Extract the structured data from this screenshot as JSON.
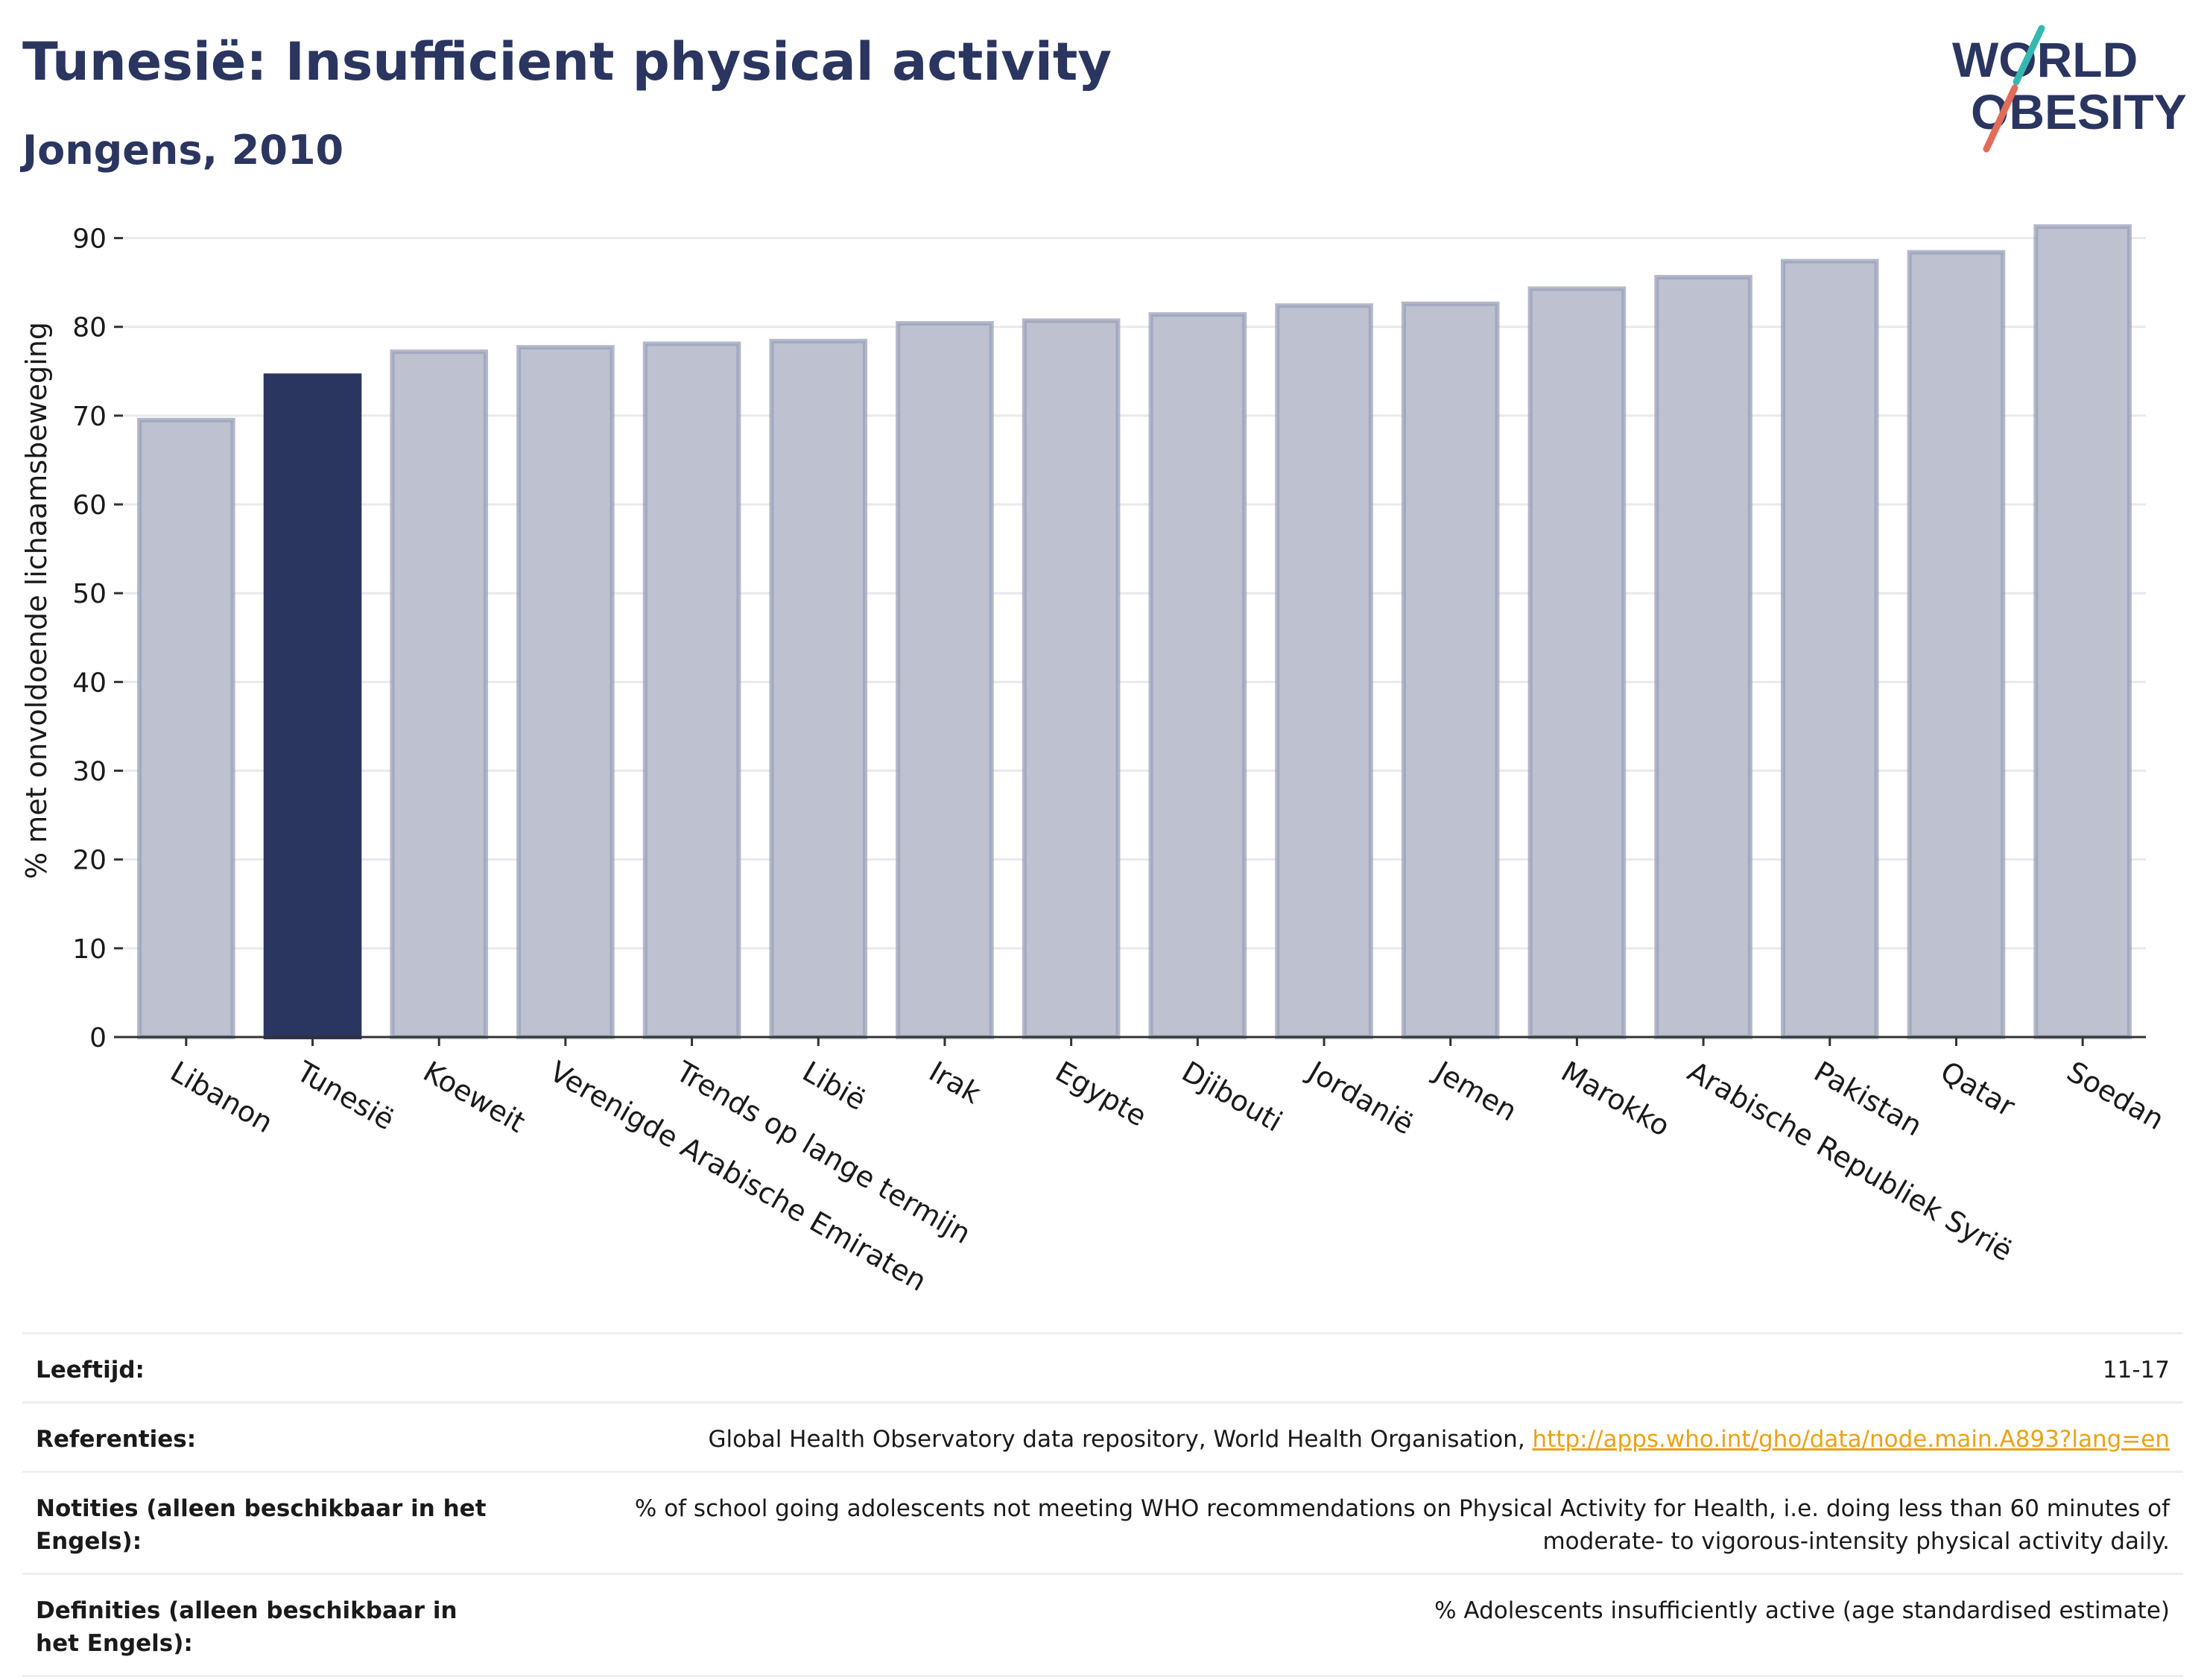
{
  "header": {
    "title": "Tunesië: Insufficient physical activity",
    "subtitle": "Jongens, 2010"
  },
  "logo": {
    "line1": "WORLD",
    "line2": "OBESITY"
  },
  "chart_data": {
    "type": "bar",
    "ylabel": "% met onvoldoende lichaamsbeweging",
    "ylim": [
      0,
      95
    ],
    "yticks": [
      0,
      10,
      20,
      30,
      40,
      50,
      60,
      70,
      80,
      90
    ],
    "grid": true,
    "categories": [
      "Libanon",
      "Tunesië",
      "Koeweit",
      "Verenigde Arabische Emiraten",
      "Trends op lange termijn",
      "Libië",
      "Irak",
      "Egypte",
      "Djibouti",
      "Jordanië",
      "Jemen",
      "Marokko",
      "Arabische Republiek Syrië",
      "Pakistan",
      "Qatar",
      "Soedan"
    ],
    "values": [
      69.5,
      74.5,
      77.2,
      77.7,
      78.1,
      78.4,
      80.4,
      80.7,
      81.4,
      82.4,
      82.6,
      84.3,
      85.6,
      87.4,
      88.4,
      91.3
    ],
    "highlight": "Tunesië",
    "colors": {
      "highlight": "#2a3560",
      "bar": "#bdc1d0",
      "bar_border": "#9aa0b8"
    }
  },
  "meta": [
    {
      "label": "Leeftijd:",
      "value": "11-17"
    },
    {
      "label": "Referenties:",
      "value": "Global Health Observatory data repository, World Health Organisation, ",
      "link": "http://apps.who.int/gho/data/node.main.A893?lang=en"
    },
    {
      "label": "Notities (alleen beschikbaar in het Engels):",
      "value": "% of school going adolescents not meeting WHO recommendations on Physical Activity for Health, i.e. doing less than 60 minutes of moderate- to vigorous-intensity physical activity daily."
    },
    {
      "label": "Definities (alleen beschikbaar in het Engels):",
      "value": "% Adolescents insufficiently active (age standardised estimate)"
    }
  ]
}
